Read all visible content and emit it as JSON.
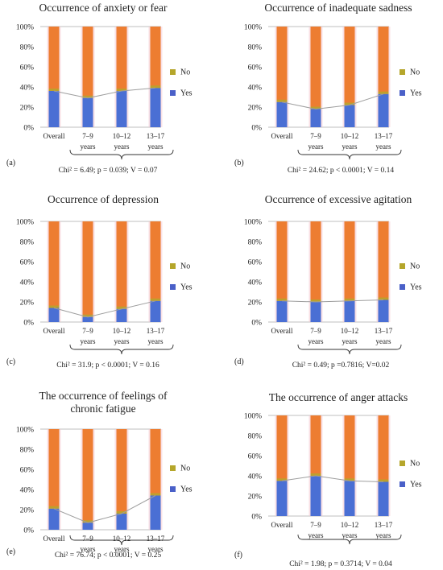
{
  "chart_data": [
    {
      "type": "bar",
      "stacked": true,
      "percent": true,
      "title": "Occurrence of anxiety or fear",
      "categories": [
        "Overall",
        "7–9 years",
        "10–12 years",
        "13–17 years"
      ],
      "series": [
        {
          "name": "Yes",
          "values": [
            36,
            29,
            36,
            39
          ]
        },
        {
          "name": "No",
          "values": [
            64,
            71,
            64,
            61
          ]
        }
      ],
      "ylim": [
        0,
        100
      ],
      "yticks": [
        "0%",
        "20%",
        "40%",
        "60%",
        "80%",
        "100%"
      ],
      "legend": "right",
      "statistics": "Chi² = 6.49; p = 0.039; V = 0.07",
      "panel": "(a)"
    },
    {
      "type": "bar",
      "stacked": true,
      "percent": true,
      "title": "Occurrence of inadequate sadness",
      "categories": [
        "Overall",
        "7–9 years",
        "10–12 years",
        "13–17 years"
      ],
      "series": [
        {
          "name": "Yes",
          "values": [
            25,
            18,
            22,
            33
          ]
        },
        {
          "name": "No",
          "values": [
            75,
            82,
            78,
            67
          ]
        }
      ],
      "ylim": [
        0,
        100
      ],
      "yticks": [
        "0%",
        "20%",
        "40%",
        "60%",
        "80%",
        "100%"
      ],
      "legend": "right",
      "statistics": "Chi² = 24.62; p < 0.0001; V = 0.14",
      "panel": "(b)"
    },
    {
      "type": "bar",
      "stacked": true,
      "percent": true,
      "title": "Occurrence of depression",
      "categories": [
        "Overall",
        "7–9 years",
        "10–12 years",
        "13–17 years"
      ],
      "series": [
        {
          "name": "Yes",
          "values": [
            14,
            5,
            13,
            21
          ]
        },
        {
          "name": "No",
          "values": [
            86,
            95,
            87,
            79
          ]
        }
      ],
      "ylim": [
        0,
        100
      ],
      "yticks": [
        "0%",
        "20%",
        "40%",
        "60%",
        "80%",
        "100%"
      ],
      "legend": "right",
      "statistics": "Chi² = 31.9; p < 0.0001; V = 0.16",
      "panel": "(c)"
    },
    {
      "type": "bar",
      "stacked": true,
      "percent": true,
      "title": "Occurrence of excessive agitation",
      "categories": [
        "Overall",
        "7–9 years",
        "10–12 years",
        "13–17 years"
      ],
      "series": [
        {
          "name": "Yes",
          "values": [
            21,
            20,
            21,
            22
          ]
        },
        {
          "name": "No",
          "values": [
            79,
            80,
            79,
            78
          ]
        }
      ],
      "ylim": [
        0,
        100
      ],
      "yticks": [
        "0%",
        "20%",
        "40%",
        "60%",
        "80%",
        "100%"
      ],
      "legend": "right",
      "statistics": "Chi² = 0.49; p =0.7816; V=0.02",
      "panel": "(d)"
    },
    {
      "type": "bar",
      "stacked": true,
      "percent": true,
      "title": "The occurrence of feelings of chronic fatigue",
      "categories": [
        "Overall",
        "7–9 years",
        "10–12 years",
        "13–17 years"
      ],
      "series": [
        {
          "name": "Yes",
          "values": [
            21,
            7,
            16,
            34
          ]
        },
        {
          "name": "No",
          "values": [
            79,
            93,
            84,
            66
          ]
        }
      ],
      "ylim": [
        0,
        100
      ],
      "yticks": [
        "0%",
        "20%",
        "40%",
        "60%",
        "80%",
        "100%"
      ],
      "legend": "right",
      "statistics": "Chi² = 76.74; p < 0.0001; V = 0.25",
      "panel": "(e)"
    },
    {
      "type": "bar",
      "stacked": true,
      "percent": true,
      "title": "The occurrence of anger attacks",
      "categories": [
        "Overall",
        "7–9 years",
        "10–12 years",
        "13–17 years"
      ],
      "series": [
        {
          "name": "Yes",
          "values": [
            35,
            40,
            35,
            34
          ]
        },
        {
          "name": "No",
          "values": [
            65,
            60,
            65,
            66
          ]
        }
      ],
      "ylim": [
        0,
        100
      ],
      "yticks": [
        "0%",
        "20%",
        "40%",
        "60%",
        "80%",
        "100%"
      ],
      "legend": "right",
      "statistics": "Chi² = 1.98; p = 0.3714; V = 0.04",
      "panel": "(f)"
    }
  ],
  "colors": {
    "yes": "#4a6fd4",
    "no": "#ed7d31",
    "yes_legend": "#4a60c8",
    "no_legend": "#b5a62b",
    "bar_highlight": "#f4c7cf"
  }
}
